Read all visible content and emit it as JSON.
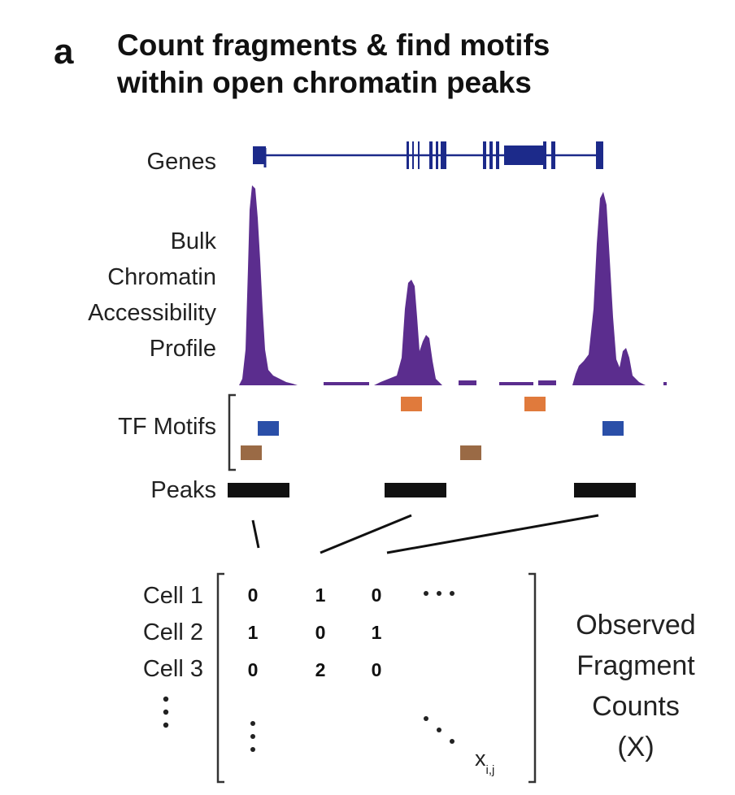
{
  "panel": {
    "letter": "a",
    "title_line1": "Count fragments & find motifs",
    "title_line2": "within open chromatin peaks"
  },
  "tracks": {
    "genes": "Genes",
    "bulk": [
      "Bulk",
      "Chromatin",
      "Accessibility",
      "Profile"
    ],
    "tf_motifs": "TF Motifs",
    "peaks": "Peaks"
  },
  "matrix": {
    "row_labels": [
      "Cell 1",
      "Cell 2",
      "Cell 3"
    ],
    "rows": [
      [
        "0",
        "1",
        "0"
      ],
      [
        "1",
        "0",
        "1"
      ],
      [
        "0",
        "2",
        "0"
      ]
    ],
    "element_base": "x",
    "element_sub": "i,j"
  },
  "observed": [
    "Observed",
    "Fragment",
    "Counts",
    "(X)"
  ],
  "colors": {
    "genes": "#1c2a8a",
    "profile": "#5b2d8e",
    "motif_orange": "#e07a3c",
    "motif_blue": "#2a4fa8",
    "motif_brown": "#9a6a45",
    "peaks": "#111111"
  }
}
